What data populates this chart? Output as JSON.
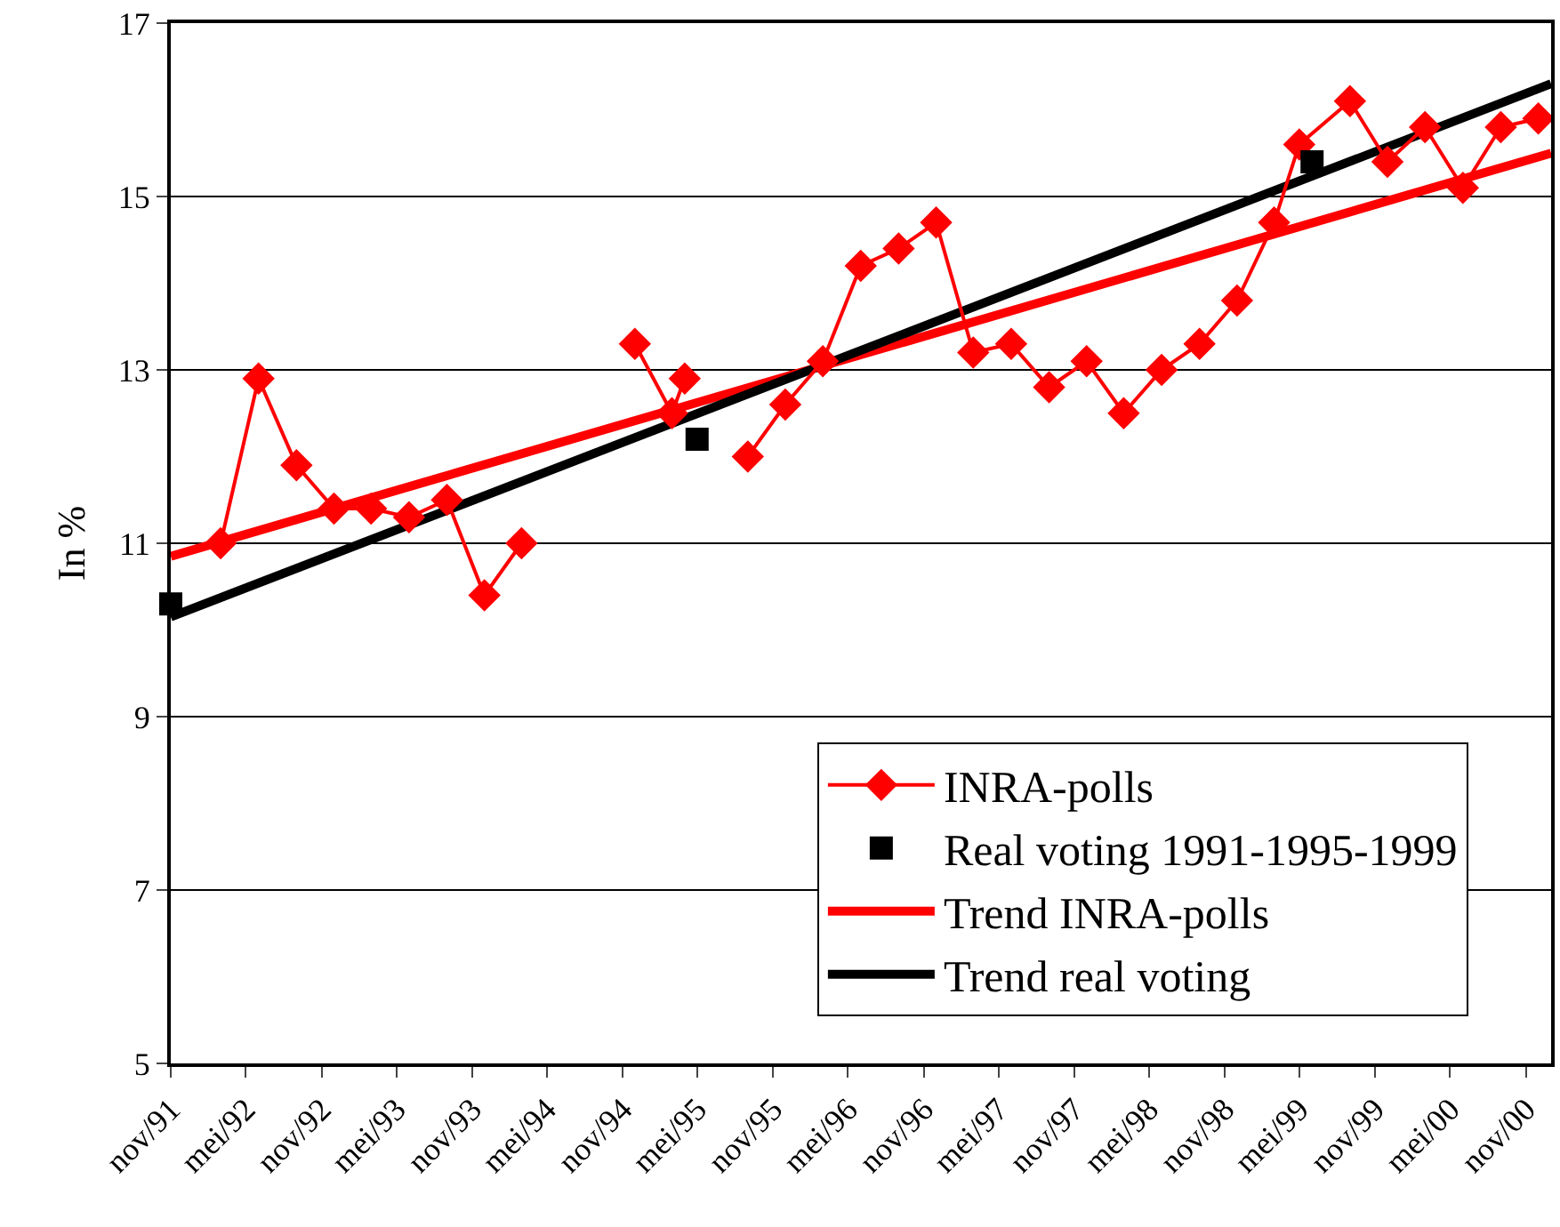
{
  "chart_data": {
    "type": "line",
    "ylabel": "In %",
    "ylim": [
      5,
      17
    ],
    "yticks": [
      5,
      7,
      9,
      11,
      13,
      15,
      17
    ],
    "xlim": [
      "1991-11",
      "2001-01"
    ],
    "xticks": [
      {
        "value": "1991-11",
        "label": "nov/91"
      },
      {
        "value": "1992-05",
        "label": "mei/92"
      },
      {
        "value": "1992-11",
        "label": "nov/92"
      },
      {
        "value": "1993-05",
        "label": "mei/93"
      },
      {
        "value": "1993-11",
        "label": "nov/93"
      },
      {
        "value": "1994-05",
        "label": "mei/94"
      },
      {
        "value": "1994-11",
        "label": "nov/94"
      },
      {
        "value": "1995-05",
        "label": "mei/95"
      },
      {
        "value": "1995-11",
        "label": "nov/95"
      },
      {
        "value": "1996-05",
        "label": "mei/96"
      },
      {
        "value": "1996-11",
        "label": "nov/96"
      },
      {
        "value": "1997-05",
        "label": "mei/97"
      },
      {
        "value": "1997-11",
        "label": "nov/97"
      },
      {
        "value": "1998-05",
        "label": "mei/98"
      },
      {
        "value": "1998-11",
        "label": "nov/98"
      },
      {
        "value": "1999-05",
        "label": "mei/99"
      },
      {
        "value": "1999-11",
        "label": "nov/99"
      },
      {
        "value": "2000-05",
        "label": "mei/00"
      },
      {
        "value": "2000-11",
        "label": "nov/00"
      }
    ],
    "grid": "y",
    "legend": "bottom right",
    "series": [
      {
        "name": "INRA-polls",
        "marker": "diamond",
        "color": "#ff0000",
        "x": [
          "1992-03",
          "1992-06",
          "1992-09",
          "1992-12",
          "1993-03",
          "1993-06",
          "1993-09",
          "1993-12",
          "1994-03",
          "1994-06",
          "1994-09",
          "1994-12",
          "1995-03",
          "1995-04",
          "1995-06",
          "1995-09",
          "1995-12",
          "1996-03",
          "1996-06",
          "1996-09",
          "1996-12",
          "1997-03",
          "1997-06",
          "1997-09",
          "1997-12",
          "1998-03",
          "1998-06",
          "1998-09",
          "1998-12",
          "1999-03",
          "1999-05",
          "1999-09",
          "1999-12",
          "2000-03",
          "2000-06",
          "2000-09",
          "2000-12"
        ],
        "values": [
          11.0,
          12.9,
          11.9,
          11.4,
          11.4,
          11.3,
          11.5,
          10.4,
          11.0,
          null,
          null,
          13.3,
          12.5,
          12.9,
          null,
          12.0,
          12.6,
          13.1,
          14.2,
          14.4,
          14.7,
          13.2,
          13.3,
          12.8,
          13.1,
          12.5,
          13.0,
          13.3,
          13.8,
          14.7,
          15.6,
          16.1,
          15.4,
          15.8,
          15.1,
          15.8,
          15.9
        ]
      },
      {
        "name": "Real voting 1991-1995-1999",
        "type": "scatter",
        "marker": "square",
        "color": "#000000",
        "x": [
          "1991-11",
          "1995-05",
          "1999-06"
        ],
        "values": [
          10.3,
          12.2,
          15.4
        ]
      },
      {
        "name": "Trend INRA-polls",
        "marker": "none",
        "color": "#ff0000",
        "x": [
          "1991-11",
          "2001-01"
        ],
        "values": [
          10.85,
          15.5
        ]
      },
      {
        "name": "Trend real voting",
        "marker": "none",
        "color": "#000000",
        "x": [
          "1991-11",
          "2001-01"
        ],
        "values": [
          10.15,
          16.3
        ]
      }
    ]
  }
}
